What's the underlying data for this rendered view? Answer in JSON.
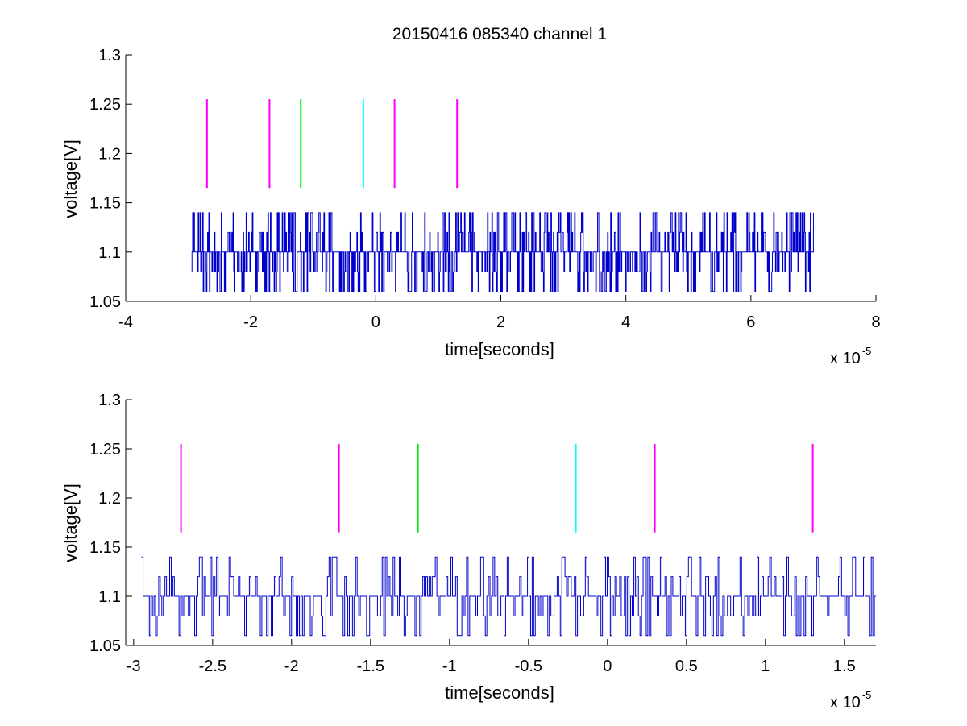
{
  "figure": {
    "title": "20150416 085340 channel 1",
    "colors": {
      "trace": "#0000cc",
      "magenta": "#ff00ff",
      "green": "#00ee00",
      "cyan": "#00ffff",
      "axes": "#000000",
      "background": "#ffffff"
    }
  },
  "chart_data": [
    {
      "type": "line",
      "title": "20150416 085340 channel 1",
      "xlabel": "time[seconds]",
      "ylabel": "voltage[V]",
      "x_exponent_label": "x 10",
      "x_exponent": "-5",
      "xlim": [
        -4e-05,
        8e-05
      ],
      "ylim": [
        1.05,
        1.3
      ],
      "xticks": [
        -4e-05,
        -2e-05,
        0,
        2e-05,
        4e-05,
        6e-05,
        8e-05
      ],
      "xtick_labels": [
        "-4",
        "-2",
        "0",
        "2",
        "4",
        "6",
        "8"
      ],
      "yticks": [
        1.05,
        1.1,
        1.15,
        1.2,
        1.25,
        1.3
      ],
      "ytick_labels": [
        "1.05",
        "1.1",
        "1.15",
        "1.2",
        "1.25",
        "1.3"
      ],
      "grid": false,
      "series": [
        {
          "kind": "noise-trace",
          "color": "#0000cc",
          "x_range": [
            -2.95e-05,
            7e-05
          ],
          "levels": [
            1.06,
            1.08,
            1.1,
            1.12,
            1.14
          ],
          "baseline": 1.1,
          "samples": 1000
        }
      ],
      "markers": [
        {
          "x": -2.7e-05,
          "color": "#ff00ff",
          "y": [
            1.165,
            1.255
          ]
        },
        {
          "x": -1.7e-05,
          "color": "#ff00ff",
          "y": [
            1.165,
            1.255
          ]
        },
        {
          "x": -1.2e-05,
          "color": "#00ee00",
          "y": [
            1.165,
            1.255
          ]
        },
        {
          "x": -2e-06,
          "color": "#00ffff",
          "y": [
            1.165,
            1.255
          ]
        },
        {
          "x": 3e-06,
          "color": "#ff00ff",
          "y": [
            1.165,
            1.255
          ]
        },
        {
          "x": 1.3e-05,
          "color": "#ff00ff",
          "y": [
            1.165,
            1.255
          ]
        }
      ]
    },
    {
      "type": "line",
      "title": "",
      "xlabel": "time[seconds]",
      "ylabel": "voltage[V]",
      "x_exponent_label": "x 10",
      "x_exponent": "-5",
      "xlim": [
        -3.05e-05,
        1.7e-05
      ],
      "ylim": [
        1.05,
        1.3
      ],
      "xticks": [
        -3e-05,
        -2.5e-05,
        -2e-05,
        -1.5e-05,
        -1e-05,
        -5e-06,
        0,
        5e-06,
        1e-05,
        1.5e-05
      ],
      "xtick_labels": [
        "-3",
        "-2.5",
        "-2",
        "-1.5",
        "-1",
        "-0.5",
        "0",
        "0.5",
        "1",
        "1.5"
      ],
      "yticks": [
        1.05,
        1.1,
        1.15,
        1.2,
        1.25,
        1.3
      ],
      "ytick_labels": [
        "1.05",
        "1.1",
        "1.15",
        "1.2",
        "1.25",
        "1.3"
      ],
      "grid": false,
      "series": [
        {
          "kind": "noise-trace",
          "color": "#0000cc",
          "x_range": [
            -2.95e-05,
            1.7e-05
          ],
          "levels": [
            1.06,
            1.08,
            1.1,
            1.12,
            1.14
          ],
          "baseline": 1.1,
          "samples": 470
        }
      ],
      "markers": [
        {
          "x": -2.7e-05,
          "color": "#ff00ff",
          "y": [
            1.165,
            1.255
          ]
        },
        {
          "x": -1.7e-05,
          "color": "#ff00ff",
          "y": [
            1.165,
            1.255
          ]
        },
        {
          "x": -1.2e-05,
          "color": "#00ee00",
          "y": [
            1.165,
            1.255
          ]
        },
        {
          "x": -2e-06,
          "color": "#00ffff",
          "y": [
            1.165,
            1.255
          ]
        },
        {
          "x": 3e-06,
          "color": "#ff00ff",
          "y": [
            1.165,
            1.255
          ]
        },
        {
          "x": 1.3e-05,
          "color": "#ff00ff",
          "y": [
            1.165,
            1.255
          ]
        }
      ]
    }
  ]
}
